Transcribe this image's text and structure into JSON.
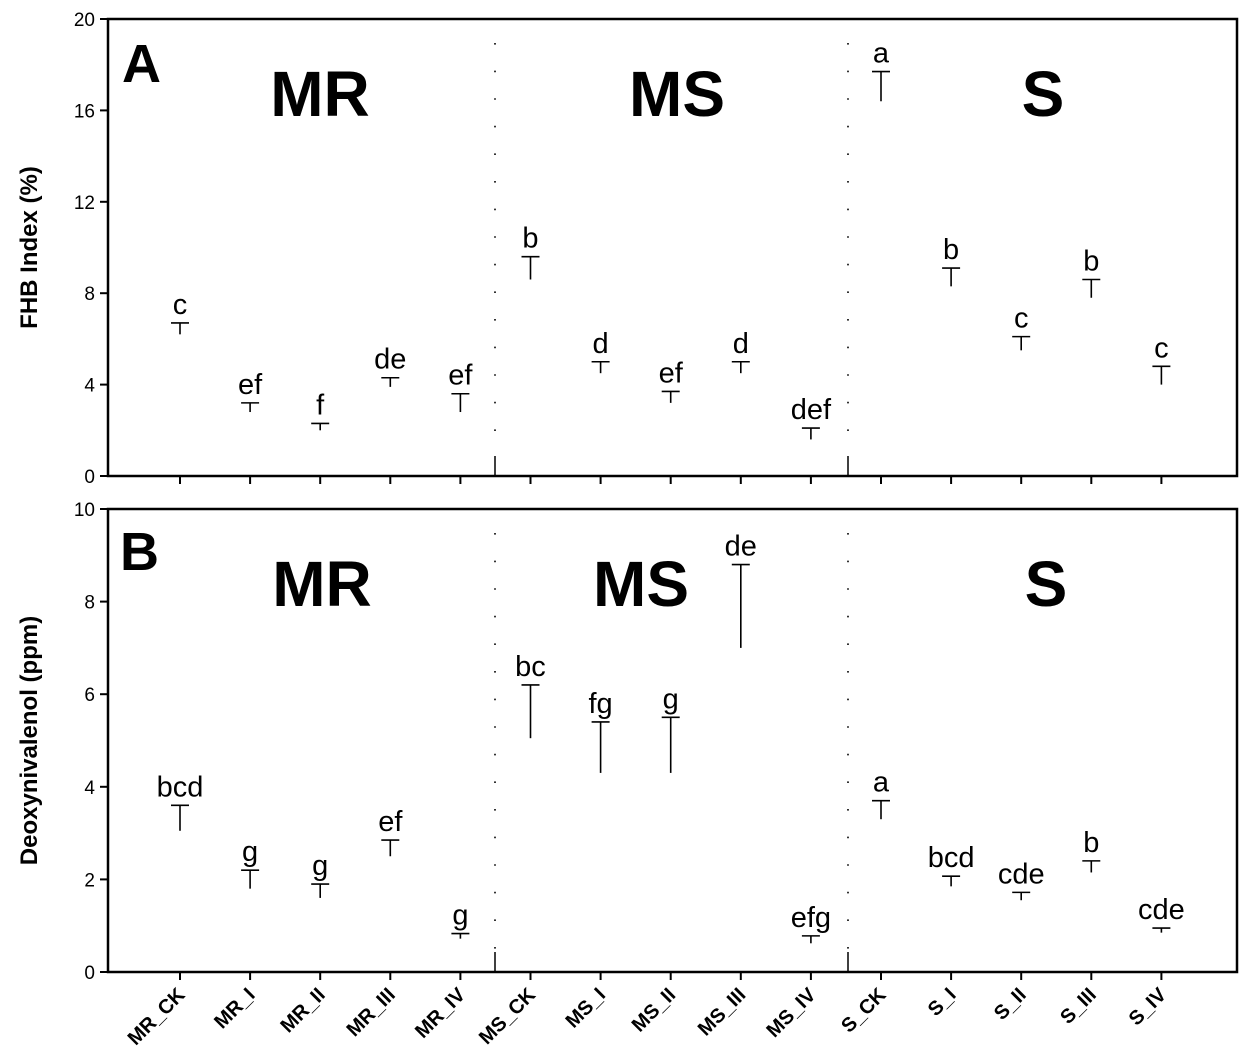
{
  "chart_data": [
    {
      "type": "scatter",
      "panel": "A",
      "ylabel": "FHB Index (%)",
      "ylim": [
        0,
        20
      ],
      "yticks": [
        0,
        4,
        8,
        12,
        16,
        20
      ],
      "categories": [
        "MR_CK",
        "MR_I",
        "MR_II",
        "MR_III",
        "MR_IV",
        "MS_CK",
        "MS_I",
        "MS_II",
        "MS_III",
        "MS_IV",
        "S_CK",
        "S_I",
        "S_II",
        "S_III",
        "S_IV"
      ],
      "groups": [
        {
          "label": "MR",
          "start": 0,
          "end": 4
        },
        {
          "label": "MS",
          "start": 5,
          "end": 9
        },
        {
          "label": "S",
          "start": 10,
          "end": 14
        }
      ],
      "values": [
        6.7,
        3.2,
        2.3,
        4.3,
        3.6,
        9.6,
        5.0,
        3.7,
        5.0,
        2.1,
        17.7,
        9.1,
        6.1,
        8.6,
        4.8
      ],
      "lower": [
        6.2,
        2.8,
        2.0,
        3.9,
        2.8,
        8.6,
        4.5,
        3.2,
        4.5,
        1.6,
        16.4,
        8.3,
        5.5,
        7.8,
        4.0
      ],
      "letters": [
        "c",
        "ef",
        "f",
        "de",
        "ef",
        "b",
        "d",
        "ef",
        "d",
        "def",
        "a",
        "b",
        "c",
        "b",
        "c"
      ],
      "grid": false
    },
    {
      "type": "scatter",
      "panel": "B",
      "ylabel": "Deoxynivalenol (ppm)",
      "ylim": [
        0,
        10
      ],
      "yticks": [
        0,
        2,
        4,
        6,
        8,
        10
      ],
      "categories": [
        "MR_CK",
        "MR_I",
        "MR_II",
        "MR_III",
        "MR_IV",
        "MS_CK",
        "MS_I",
        "MS_II",
        "MS_III",
        "MS_IV",
        "S_CK",
        "S_I",
        "S_II",
        "S_III",
        "S_IV"
      ],
      "groups": [
        {
          "label": "MR",
          "start": 0,
          "end": 4
        },
        {
          "label": "MS",
          "start": 5,
          "end": 9
        },
        {
          "label": "S",
          "start": 10,
          "end": 14
        }
      ],
      "values": [
        3.6,
        2.2,
        1.9,
        2.85,
        0.83,
        6.2,
        5.4,
        5.5,
        8.8,
        0.78,
        3.7,
        2.07,
        1.72,
        2.4,
        0.95
      ],
      "lower": [
        3.05,
        1.8,
        1.6,
        2.5,
        0.72,
        5.05,
        4.3,
        4.3,
        7.0,
        0.62,
        3.3,
        1.85,
        1.55,
        2.15,
        0.85
      ],
      "letters": [
        "bcd",
        "g",
        "g",
        "ef",
        "g",
        "bc",
        "fg",
        "g",
        "de",
        "efg",
        "a",
        "bcd",
        "cde",
        "b",
        "cde"
      ],
      "grid": false
    }
  ]
}
